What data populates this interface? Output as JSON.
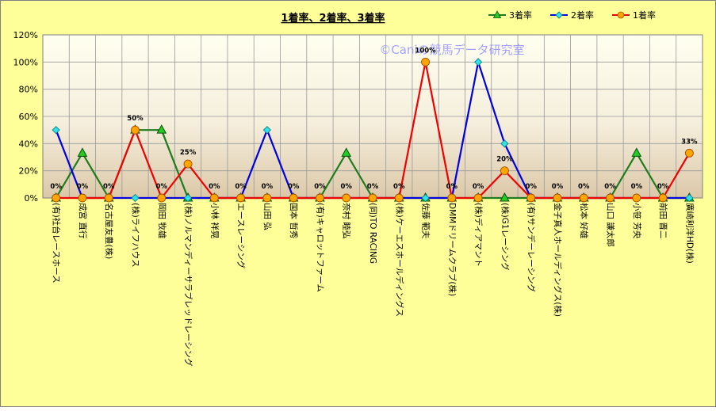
{
  "chart_data": {
    "type": "line",
    "title": "1着率、2着率、3着率",
    "watermark": "©Caniの競馬データ研究室",
    "xlabel": "",
    "ylabel": "",
    "ylim": [
      0,
      120
    ],
    "y_ticks": [
      "0%",
      "20%",
      "40%",
      "60%",
      "80%",
      "100%",
      "120%"
    ],
    "grid": true,
    "legend_position": "top-right",
    "colors": {
      "background": "#FFFF99",
      "plot_top": "#FFFFF0",
      "plot_bottom": "#DCC8A8",
      "series_3": "#1E7B1E",
      "series_2": "#0000E0",
      "series_1": "#F00000",
      "marker_3": "#22CC22",
      "marker_2": "#33E0E8",
      "marker_1": "#FFA500"
    },
    "categories": [
      "(有)社台レースホース",
      "成宮 直行",
      "名古屋友豊(株)",
      "(株)ライフハウス",
      "岡田 牧雄",
      "(株)ノルマンディーサラブレッドレーシング",
      "小林 祥晃",
      "エースレーシング",
      "山田 弘",
      "国本 哲秀",
      "(有)キャロットファーム",
      "奈村 睦弘",
      "(同)TO RACING",
      "(株)ケーエスホールディングス",
      "佐藤 範夫",
      "DMMドリームクラブ(株)",
      "(株)ディアマント",
      "(株)G1レーシング",
      "(有)サンデーレーシング",
      "金子真人ホールディングス(株)",
      "松本 好雄",
      "山口 謙太郎",
      "小笹 芳央",
      "前田 晋二",
      "廣崎利洋HD(株)"
    ],
    "series": [
      {
        "name": "3着率",
        "key": "s3",
        "values": [
          0,
          33,
          0,
          50,
          50,
          0,
          0,
          0,
          0,
          0,
          0,
          33,
          0,
          0,
          0,
          0,
          0,
          0,
          0,
          0,
          0,
          0,
          33,
          0,
          0
        ]
      },
      {
        "name": "2着率",
        "key": "s2",
        "values": [
          50,
          0,
          0,
          0,
          0,
          0,
          0,
          0,
          50,
          0,
          0,
          0,
          0,
          0,
          0,
          0,
          100,
          40,
          0,
          0,
          0,
          0,
          0,
          0,
          0
        ]
      },
      {
        "name": "1着率",
        "key": "s1",
        "values": [
          0,
          0,
          0,
          50,
          0,
          25,
          0,
          0,
          0,
          0,
          0,
          0,
          0,
          0,
          100,
          0,
          0,
          20,
          0,
          0,
          0,
          0,
          0,
          0,
          33
        ]
      }
    ],
    "data_labels": [
      "0%",
      "0%",
      "0%",
      "50%",
      "0%",
      "25%",
      "0%",
      "0%",
      "0%",
      "0%",
      "0%",
      "0%",
      "0%",
      "0%",
      "100%",
      "0%",
      "0%",
      "20%",
      "0%",
      "0%",
      "0%",
      "0%",
      "0%",
      "0%",
      "33%"
    ]
  }
}
